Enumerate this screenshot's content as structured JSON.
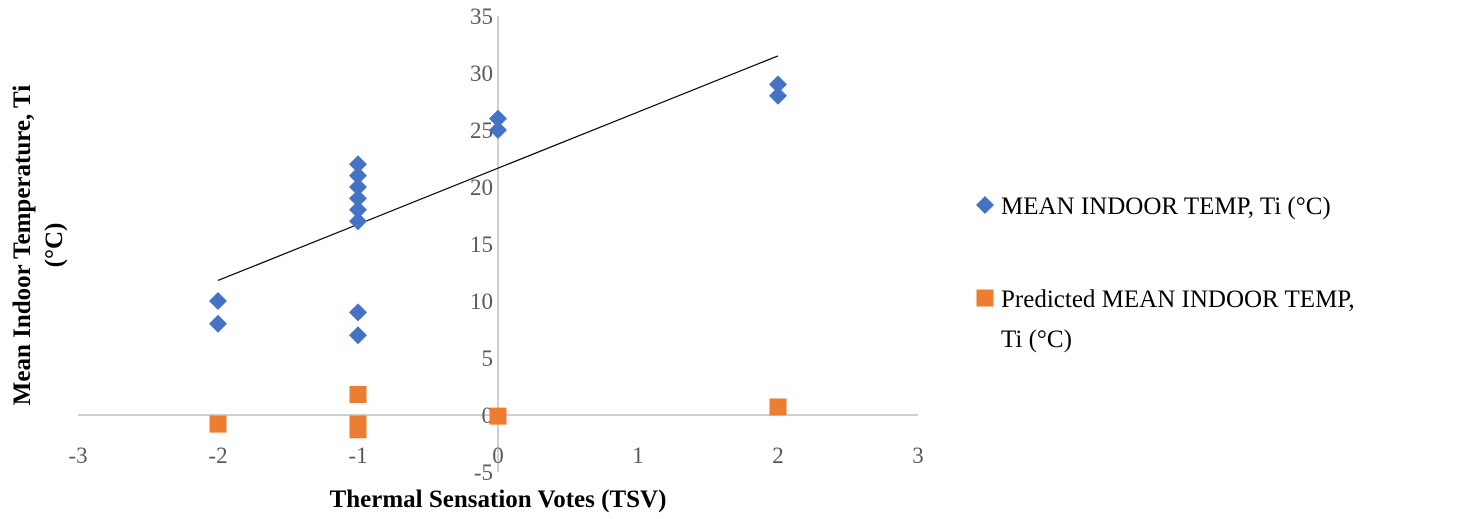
{
  "chart_data": {
    "type": "scatter",
    "title": "",
    "xlabel": "Thermal Sensation Votes (TSV)",
    "ylabel_lines": [
      "Mean Indoor Temperature, Ti",
      "(°C)"
    ],
    "xlim": [
      -3,
      3
    ],
    "ylim": [
      -5,
      35
    ],
    "x_ticks": [
      -3,
      -2,
      -1,
      0,
      1,
      2,
      3
    ],
    "y_ticks": [
      -5,
      0,
      5,
      10,
      15,
      20,
      25,
      30,
      35
    ],
    "grid": false,
    "legend_position": "right",
    "series": [
      {
        "name": "MEAN INDOOR TEMP, Ti (°C)",
        "legend_lines": [
          "MEAN INDOOR TEMP, Ti (°C)"
        ],
        "marker": "diamond",
        "color": "#4472C4",
        "points": [
          [
            -2,
            10
          ],
          [
            -2,
            8
          ],
          [
            -1,
            22
          ],
          [
            -1,
            21
          ],
          [
            -1,
            20
          ],
          [
            -1,
            19
          ],
          [
            -1,
            18
          ],
          [
            -1,
            17
          ],
          [
            -1,
            9
          ],
          [
            -1,
            7
          ],
          [
            0,
            26
          ],
          [
            0,
            25
          ],
          [
            2,
            29
          ],
          [
            2,
            28
          ]
        ]
      },
      {
        "name": "Predicted MEAN INDOOR TEMP, Ti (°C)",
        "legend_lines": [
          "Predicted MEAN INDOOR TEMP,",
          "Ti (°C)"
        ],
        "marker": "square",
        "color": "#ED7D31",
        "points": [
          [
            -2,
            -0.8
          ],
          [
            -1,
            1.8
          ],
          [
            -1,
            -0.8
          ],
          [
            -1,
            -1.3
          ],
          [
            0,
            -0.1
          ],
          [
            2,
            0.7
          ]
        ]
      }
    ],
    "trendline": {
      "series": "MEAN INDOOR TEMP, Ti (°C)",
      "x_range": [
        -2,
        2
      ],
      "start_y": 11.8,
      "end_y": 31.5,
      "color": "#000000"
    }
  }
}
